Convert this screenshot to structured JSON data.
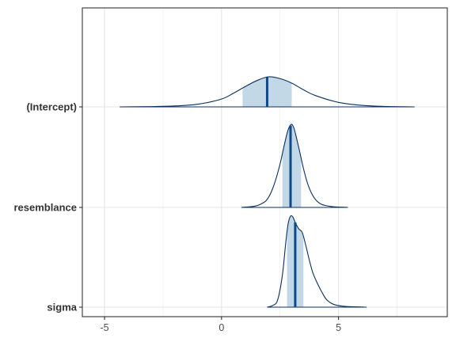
{
  "chart_data": {
    "type": "area",
    "subtype": "ridgeline-density",
    "title": "",
    "xlabel": "",
    "ylabel": "",
    "xlim": [
      -5.95,
      9.65
    ],
    "x_ticks": [
      -5,
      0,
      5
    ],
    "grid": true,
    "legend": "none",
    "colors": {
      "outline": "#0b2f5f",
      "interval_fill": "#c2d8e6",
      "median_line": "#0b4a8b",
      "grid_major": "#e5e5e5",
      "grid_minor": "#f0f0f0",
      "axis_border": "#333333"
    },
    "series": [
      {
        "name": "(Intercept)",
        "median": 1.95,
        "interval": [
          0.9,
          3.0
        ],
        "range": [
          -4.35,
          8.25
        ],
        "density": [
          [
            -4.35,
            0.0
          ],
          [
            -3.0,
            0.01
          ],
          [
            -2.0,
            0.03
          ],
          [
            -1.0,
            0.09
          ],
          [
            0.0,
            0.26
          ],
          [
            0.5,
            0.45
          ],
          [
            1.0,
            0.67
          ],
          [
            1.5,
            0.87
          ],
          [
            2.0,
            1.0
          ],
          [
            2.5,
            0.94
          ],
          [
            3.0,
            0.79
          ],
          [
            3.5,
            0.57
          ],
          [
            4.0,
            0.38
          ],
          [
            5.0,
            0.15
          ],
          [
            6.0,
            0.05
          ],
          [
            7.0,
            0.015
          ],
          [
            8.25,
            0.0
          ]
        ]
      },
      {
        "name": "resemblance",
        "median": 2.95,
        "interval": [
          2.6,
          3.4
        ],
        "range": [
          0.85,
          5.4
        ],
        "density": [
          [
            0.85,
            0.0
          ],
          [
            1.3,
            0.01
          ],
          [
            1.6,
            0.03
          ],
          [
            1.9,
            0.08
          ],
          [
            2.1,
            0.17
          ],
          [
            2.3,
            0.32
          ],
          [
            2.5,
            0.52
          ],
          [
            2.65,
            0.71
          ],
          [
            2.8,
            0.89
          ],
          [
            2.9,
            0.97
          ],
          [
            3.0,
            1.0
          ],
          [
            3.1,
            0.95
          ],
          [
            3.2,
            0.84
          ],
          [
            3.35,
            0.66
          ],
          [
            3.5,
            0.47
          ],
          [
            3.7,
            0.27
          ],
          [
            3.95,
            0.12
          ],
          [
            4.25,
            0.04
          ],
          [
            4.7,
            0.01
          ],
          [
            5.4,
            0.0
          ]
        ]
      },
      {
        "name": "sigma",
        "median": 3.15,
        "interval": [
          2.8,
          3.5
        ],
        "range": [
          1.95,
          6.2
        ],
        "density": [
          [
            1.95,
            0.0
          ],
          [
            2.2,
            0.02
          ],
          [
            2.4,
            0.08
          ],
          [
            2.6,
            0.35
          ],
          [
            2.75,
            0.72
          ],
          [
            2.85,
            0.92
          ],
          [
            2.95,
            1.0
          ],
          [
            3.05,
            0.99
          ],
          [
            3.15,
            0.93
          ],
          [
            3.3,
            0.86
          ],
          [
            3.45,
            0.82
          ],
          [
            3.6,
            0.68
          ],
          [
            3.75,
            0.52
          ],
          [
            3.9,
            0.38
          ],
          [
            4.1,
            0.26
          ],
          [
            4.3,
            0.16
          ],
          [
            4.5,
            0.08
          ],
          [
            4.8,
            0.03
          ],
          [
            5.2,
            0.01
          ],
          [
            5.7,
            0.004
          ],
          [
            6.2,
            0.0
          ]
        ]
      }
    ]
  }
}
